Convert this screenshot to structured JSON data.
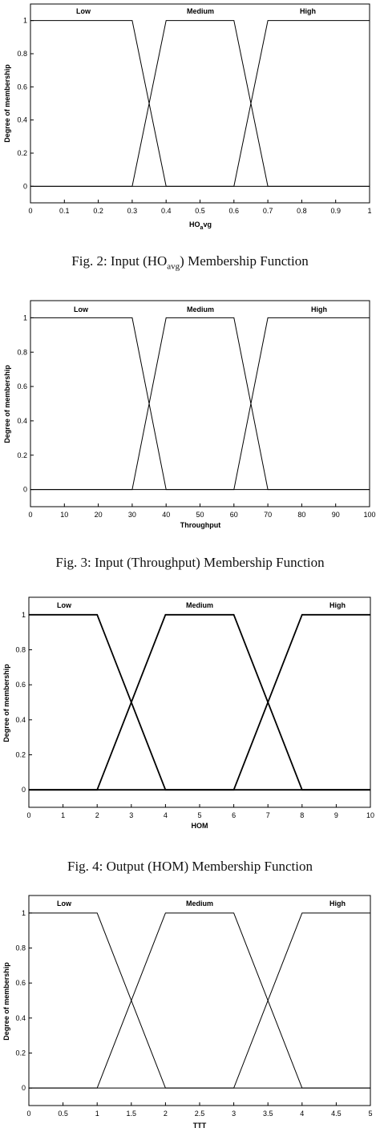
{
  "chart_data": [
    {
      "type": "line",
      "ylabel": "Degree of membership",
      "xlabel_main": "HO",
      "xlabel_sub": "a",
      "xlabel_tail": "vg",
      "xlim": [
        0,
        1
      ],
      "ylim": [
        -0.1,
        1.1
      ],
      "xticks": [
        "0",
        "0.1",
        "0.2",
        "0.3",
        "0.4",
        "0.5",
        "0.6",
        "0.7",
        "0.8",
        "0.9",
        "1"
      ],
      "yticks": [
        "0",
        "0.2",
        "0.4",
        "0.6",
        "0.8",
        "1"
      ],
      "series": [
        {
          "name": "Low",
          "x": [
            0,
            0.3,
            0.4,
            1
          ],
          "y": [
            1,
            1,
            0,
            0
          ]
        },
        {
          "name": "Medium",
          "x": [
            0,
            0.3,
            0.4,
            0.6,
            0.7,
            1
          ],
          "y": [
            0,
            0,
            1,
            1,
            0,
            0
          ]
        },
        {
          "name": "High",
          "x": [
            0,
            0.6,
            0.7,
            1
          ],
          "y": [
            0,
            0,
            1,
            1
          ]
        }
      ],
      "caption_prefix": "Fig. 2: Input (HO",
      "caption_sub": "avg",
      "caption_suffix": ") Membership Function"
    },
    {
      "type": "line",
      "ylabel": "Degree of membership",
      "xlabel": "Throughput",
      "xlim": [
        0,
        100
      ],
      "ylim": [
        -0.1,
        1.1
      ],
      "xticks": [
        "0",
        "10",
        "20",
        "30",
        "40",
        "50",
        "60",
        "70",
        "80",
        "90",
        "100"
      ],
      "yticks": [
        "0",
        "0.2",
        "0.4",
        "0.6",
        "0.8",
        "1"
      ],
      "series": [
        {
          "name": "Low",
          "x": [
            0,
            30,
            40,
            100
          ],
          "y": [
            1,
            1,
            0,
            0
          ]
        },
        {
          "name": "Medium",
          "x": [
            0,
            30,
            40,
            60,
            70,
            100
          ],
          "y": [
            0,
            0,
            1,
            1,
            0,
            0
          ]
        },
        {
          "name": "High",
          "x": [
            0,
            60,
            70,
            100
          ],
          "y": [
            0,
            0,
            1,
            1
          ]
        }
      ],
      "caption": "Fig. 3: Input (Throughput) Membership Function"
    },
    {
      "type": "line",
      "ylabel": "Degree of membership",
      "xlabel": "HOM",
      "xlim": [
        0,
        10
      ],
      "ylim": [
        -0.1,
        1.1
      ],
      "xticks": [
        "0",
        "1",
        "2",
        "3",
        "4",
        "5",
        "6",
        "7",
        "8",
        "9",
        "10"
      ],
      "yticks": [
        "0",
        "0.2",
        "0.4",
        "0.6",
        "0.8",
        "1"
      ],
      "series": [
        {
          "name": "Low",
          "x": [
            0,
            2,
            4,
            10
          ],
          "y": [
            1,
            1,
            0,
            0
          ]
        },
        {
          "name": "Medium",
          "x": [
            0,
            2,
            4,
            6,
            8,
            10
          ],
          "y": [
            0,
            0,
            1,
            1,
            0,
            0
          ]
        },
        {
          "name": "High",
          "x": [
            0,
            6,
            8,
            10
          ],
          "y": [
            0,
            0,
            1,
            1
          ]
        }
      ],
      "caption": "Fig. 4: Output (HOM) Membership Function"
    },
    {
      "type": "line",
      "ylabel": "Degree of membership",
      "xlabel": "TTT",
      "xlim": [
        0,
        5
      ],
      "ylim": [
        -0.1,
        1.1
      ],
      "xticks": [
        "0",
        "0.5",
        "1",
        "1.5",
        "2",
        "2.5",
        "3",
        "3.5",
        "4",
        "4.5",
        "5"
      ],
      "yticks": [
        "0",
        "0.2",
        "0.4",
        "0.6",
        "0.8",
        "1"
      ],
      "series": [
        {
          "name": "Low",
          "x": [
            0,
            1,
            2,
            5
          ],
          "y": [
            1,
            1,
            0,
            0
          ]
        },
        {
          "name": "Medium",
          "x": [
            0,
            1,
            2,
            3,
            4,
            5
          ],
          "y": [
            0,
            0,
            1,
            1,
            0,
            0
          ]
        },
        {
          "name": "High",
          "x": [
            0,
            3,
            4,
            5
          ],
          "y": [
            0,
            0,
            1,
            1
          ]
        }
      ]
    }
  ]
}
